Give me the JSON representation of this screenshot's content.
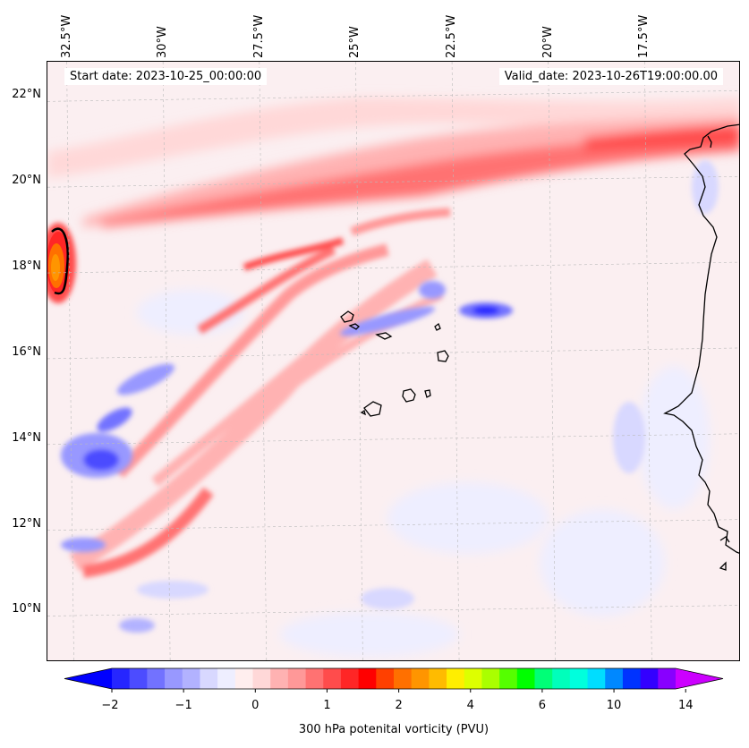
{
  "header": {
    "start_date": "Start date: 2023-10-25_00:00:00",
    "valid_date": "Valid_date: 2023-10-26T19:00:00.00"
  },
  "map": {
    "type": "contour-map",
    "variable": "300 hPa potenital vorticity (PVU)",
    "lon_range": [
      -33.0,
      -15.0
    ],
    "lat_range": [
      8.8,
      22.8
    ],
    "lon_ticks": [
      {
        "value": -32.5,
        "label": "32.5°W"
      },
      {
        "value": -30.0,
        "label": "30°W"
      },
      {
        "value": -27.5,
        "label": "27.5°W"
      },
      {
        "value": -25.0,
        "label": "25°W"
      },
      {
        "value": -22.5,
        "label": "22.5°W"
      },
      {
        "value": -20.0,
        "label": "20°W"
      },
      {
        "value": -17.5,
        "label": "17.5°W"
      }
    ],
    "lat_ticks": [
      {
        "value": 22,
        "label": "22°N"
      },
      {
        "value": 20,
        "label": "20°N"
      },
      {
        "value": 18,
        "label": "18°N"
      },
      {
        "value": 16,
        "label": "16°N"
      },
      {
        "value": 14,
        "label": "14°N"
      },
      {
        "value": 12,
        "label": "12°N"
      },
      {
        "value": 10,
        "label": "10°N"
      }
    ],
    "features": {
      "coastline": "west-african-coast",
      "islands": "cape-verde-islands",
      "gridlines": true
    }
  },
  "colorbar": {
    "title": "300 hPa potenital vorticity (PVU)",
    "tick_labels": [
      "−2",
      "−1",
      "0",
      "1",
      "2",
      "4",
      "6",
      "10",
      "14"
    ],
    "colors": [
      "#0000ff",
      "#2626ff",
      "#4c4cff",
      "#7272ff",
      "#9898ff",
      "#b2b2ff",
      "#d8d8ff",
      "#eeeeff",
      "#ffeeee",
      "#ffd8d8",
      "#ffb2b2",
      "#ff9898",
      "#ff7272",
      "#ff4c4c",
      "#ff2626",
      "#ff0000",
      "#ff4000",
      "#ff7000",
      "#ff9500",
      "#ffbb00",
      "#ffee00",
      "#ddff00",
      "#aaff00",
      "#55ff00",
      "#00ff00",
      "#00ff77",
      "#00ffbb",
      "#00ffdd",
      "#00ddff",
      "#0088ff",
      "#0033ff",
      "#3300ff",
      "#8800ff",
      "#cc00ff"
    ]
  }
}
